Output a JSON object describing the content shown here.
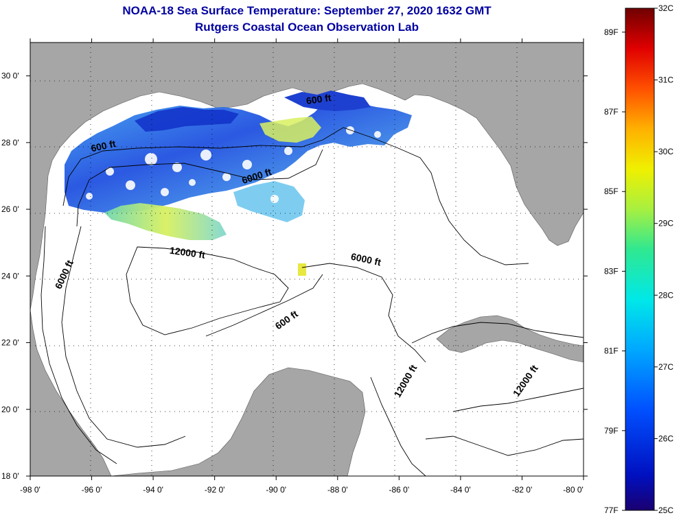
{
  "header": {
    "title": "NOAA-18 Sea Surface Temperature:  September 27, 2020 1632 GMT",
    "subtitle": "Rutgers Coastal Ocean Observation Lab"
  },
  "map": {
    "lon_range": [
      -98,
      -80
    ],
    "lat_range": [
      18,
      31
    ],
    "lon_ticks": [
      "-98 0'",
      "-96 0'",
      "-94 0'",
      "-92 0'",
      "-90 0'",
      "-88 0'",
      "-86 0'",
      "-84 0'",
      "-82 0'",
      "-80 0'"
    ],
    "lat_ticks": [
      "18 0'",
      "20 0'",
      "22 0'",
      "24 0'",
      "26 0'",
      "28 0'",
      "30 0'"
    ],
    "contour_labels": [
      {
        "text": "600 ft",
        "lon": -95.6,
        "lat": 27.8,
        "angle": -12
      },
      {
        "text": "6000 ft",
        "lon": -90.6,
        "lat": 26.9,
        "angle": -18
      },
      {
        "text": "600 ft",
        "lon": -88.6,
        "lat": 29.2,
        "angle": -8
      },
      {
        "text": "12000 ft",
        "lon": -92.9,
        "lat": 24.6,
        "angle": 8
      },
      {
        "text": "6000 ft",
        "lon": -87.1,
        "lat": 24.4,
        "angle": 12
      },
      {
        "text": "6000 ft",
        "lon": -96.8,
        "lat": 24.0,
        "angle": -65
      },
      {
        "text": "600 ft",
        "lon": -89.6,
        "lat": 22.6,
        "angle": -35
      },
      {
        "text": "12000 ft",
        "lon": -85.7,
        "lat": 20.8,
        "angle": -60
      },
      {
        "text": "12000 ft",
        "lon": -81.8,
        "lat": 20.8,
        "angle": -55
      }
    ],
    "colors": {
      "land": "#a6a6a6",
      "ocean": "#ffffff",
      "contour": "#000000"
    }
  },
  "colorbar": {
    "celsius_labels": [
      "32C",
      "31C",
      "30C",
      "29C",
      "28C",
      "27C",
      "26C",
      "25C"
    ],
    "fahrenheit_labels": [
      "89F",
      "87F",
      "85F",
      "83F",
      "81F",
      "79F",
      "77F"
    ],
    "celsius_range": [
      25,
      32
    ],
    "fahrenheit_values": [
      89,
      87,
      85,
      83,
      81,
      79,
      77
    ]
  }
}
